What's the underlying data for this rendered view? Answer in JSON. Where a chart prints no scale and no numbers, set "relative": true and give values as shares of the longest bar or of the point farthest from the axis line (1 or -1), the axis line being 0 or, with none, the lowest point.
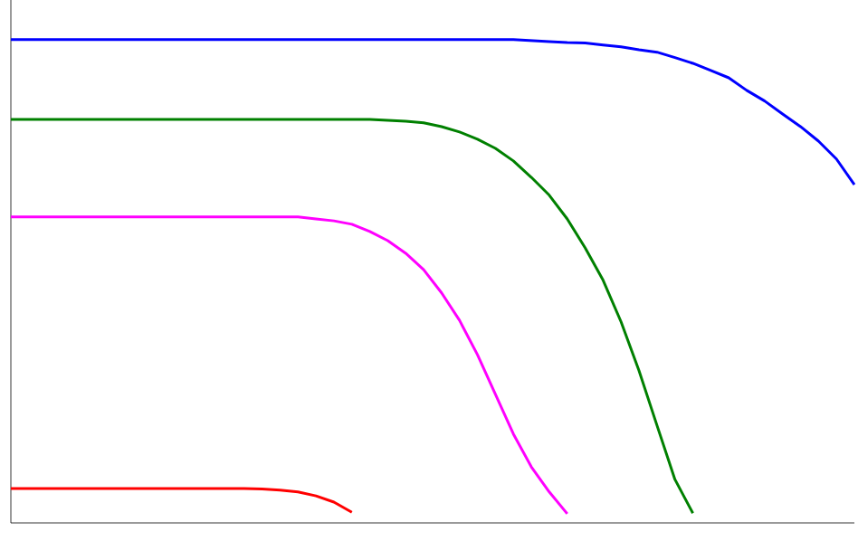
{
  "chart_data": {
    "type": "line",
    "relative": true,
    "marker": "none",
    "line_style": "solid",
    "categories": [
      null,
      null,
      null,
      null,
      null,
      null,
      null,
      null,
      null,
      null,
      null,
      null,
      null,
      null,
      null,
      null,
      null,
      null,
      null,
      null,
      null,
      null,
      null,
      null,
      null,
      null,
      null,
      null,
      null,
      null,
      null,
      null,
      null,
      null,
      null,
      null,
      null,
      null,
      null,
      null,
      null,
      null,
      null,
      null,
      null,
      null,
      null,
      null
    ],
    "series": [
      {
        "color": "#0000ff",
        "values": [
          1,
          1,
          1,
          1,
          1,
          1,
          1,
          1,
          1,
          1,
          1,
          1,
          1,
          1,
          1,
          1,
          1,
          1,
          1,
          1,
          1,
          1,
          1,
          1,
          1,
          1,
          1,
          1,
          1,
          0.998,
          0.996,
          0.994,
          0.993,
          0.989,
          0.985,
          0.979,
          0.974,
          0.963,
          0.951,
          0.936,
          0.921,
          0.895,
          0.873,
          0.846,
          0.82,
          0.79,
          0.753,
          0.7
        ]
      },
      {
        "color": "#008000",
        "values": [
          0.835,
          0.835,
          0.835,
          0.835,
          0.835,
          0.835,
          0.835,
          0.835,
          0.835,
          0.835,
          0.835,
          0.835,
          0.835,
          0.835,
          0.835,
          0.835,
          0.835,
          0.835,
          0.835,
          0.835,
          0.835,
          0.833,
          0.831,
          0.828,
          0.82,
          0.809,
          0.794,
          0.775,
          0.749,
          0.715,
          0.678,
          0.629,
          0.569,
          0.502,
          0.416,
          0.315,
          0.202,
          0.09,
          0.02,
          null,
          null,
          null,
          null,
          null,
          null,
          null,
          null,
          null
        ]
      },
      {
        "color": "#ff00ff",
        "values": [
          0.633,
          0.633,
          0.633,
          0.633,
          0.633,
          0.633,
          0.633,
          0.633,
          0.633,
          0.633,
          0.633,
          0.633,
          0.633,
          0.633,
          0.633,
          0.633,
          0.633,
          0.629,
          0.625,
          0.618,
          0.603,
          0.584,
          0.558,
          0.524,
          0.476,
          0.419,
          0.348,
          0.266,
          0.184,
          0.116,
          0.064,
          0.019,
          null,
          null,
          null,
          null,
          null,
          null,
          null,
          null,
          null,
          null,
          null,
          null,
          null,
          null,
          null,
          null
        ]
      },
      {
        "color": "#ff0000",
        "values": [
          0.071,
          0.071,
          0.071,
          0.071,
          0.071,
          0.071,
          0.071,
          0.071,
          0.071,
          0.071,
          0.071,
          0.071,
          0.071,
          0.071,
          0.07,
          0.068,
          0.064,
          0.056,
          0.043,
          0.022,
          null,
          null,
          null,
          null,
          null,
          null,
          null,
          null,
          null,
          null,
          null,
          null,
          null,
          null,
          null,
          null,
          null,
          null,
          null,
          null,
          null,
          null,
          null,
          null,
          null,
          null,
          null,
          null
        ]
      }
    ]
  }
}
